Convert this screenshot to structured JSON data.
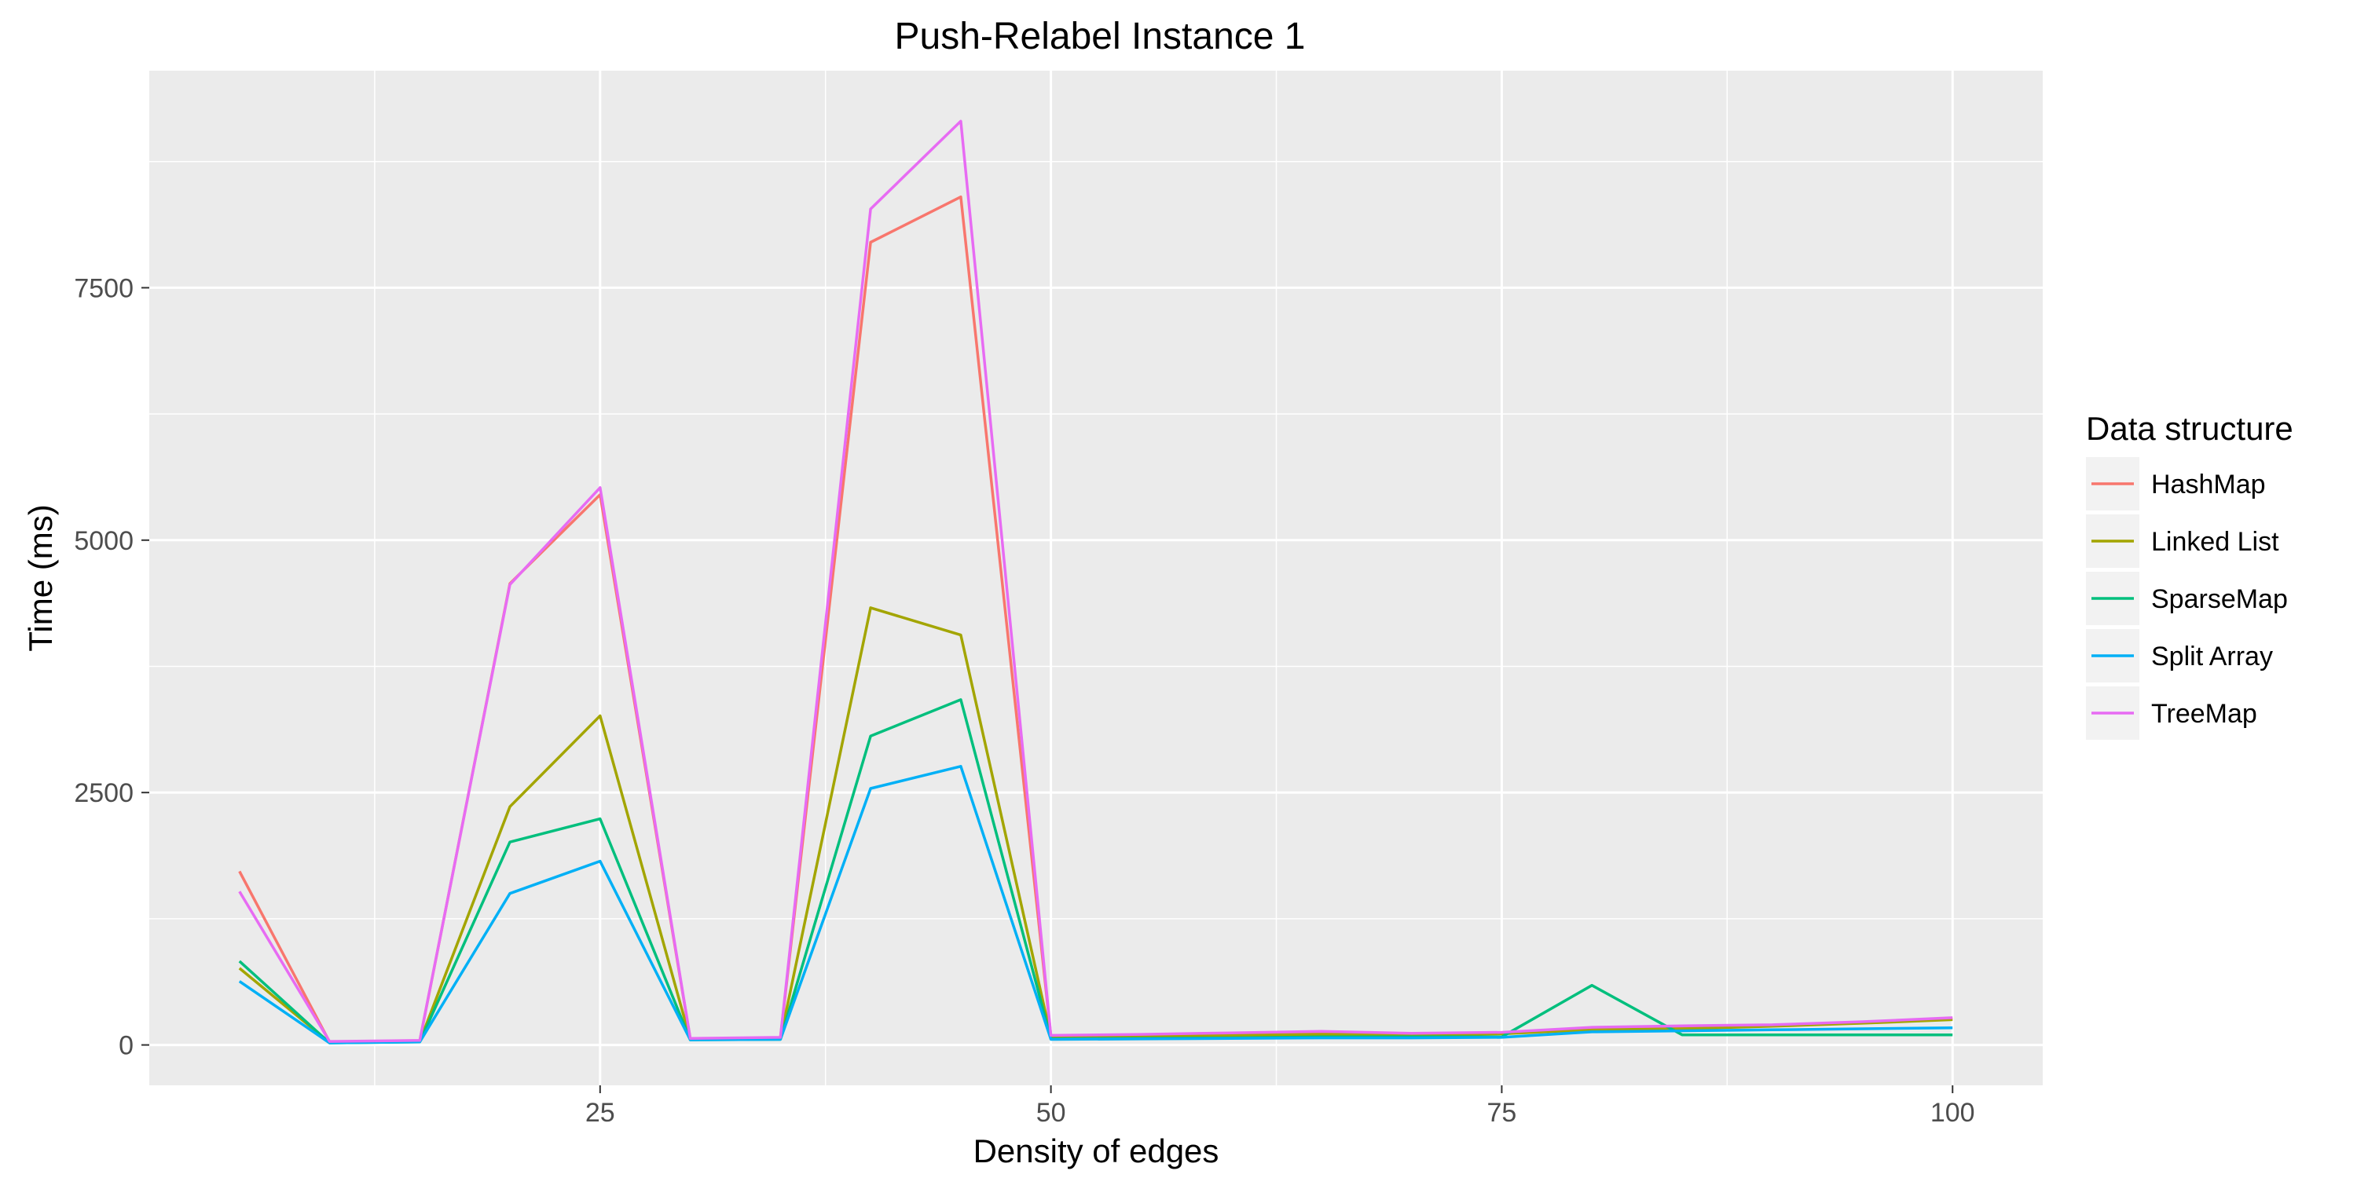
{
  "chart_data": {
    "type": "line",
    "title": "Push-Relabel Instance 1",
    "xlabel": "Density of edges",
    "ylabel": "Time (ms)",
    "xlim": [
      0,
      105
    ],
    "ylim": [
      -400,
      9650
    ],
    "x_ticks": [
      25,
      50,
      75,
      100
    ],
    "y_ticks": [
      0,
      2500,
      5000,
      7500
    ],
    "x_tick_labels": [
      "25",
      "50",
      "75",
      "100"
    ],
    "y_tick_labels": [
      "0",
      "2500",
      "5000",
      "7500"
    ],
    "grid": true,
    "legend_position": "right",
    "legend_title": "Data structure",
    "x": [
      5,
      10,
      15,
      20,
      25,
      30,
      35,
      40,
      45,
      50,
      55,
      60,
      65,
      70,
      75,
      80,
      85,
      90,
      95,
      100
    ],
    "series": [
      {
        "name": "HashMap",
        "color": "#F8766D",
        "values": [
          1720,
          30,
          40,
          4570,
          5450,
          60,
          70,
          7950,
          8400,
          90,
          100,
          110,
          130,
          110,
          120,
          170,
          180,
          190,
          220,
          260
        ]
      },
      {
        "name": "Linked List",
        "color": "#A3A500",
        "values": [
          760,
          25,
          35,
          2360,
          3260,
          55,
          60,
          4330,
          4060,
          80,
          85,
          95,
          105,
          100,
          110,
          150,
          160,
          185,
          215,
          250
        ]
      },
      {
        "name": "SparseMap",
        "color": "#00BF7D",
        "values": [
          830,
          20,
          30,
          2010,
          2240,
          50,
          55,
          3060,
          3420,
          60,
          65,
          70,
          80,
          80,
          80,
          590,
          100,
          100,
          100,
          100
        ]
      },
      {
        "name": "Split Array",
        "color": "#00B0F6",
        "values": [
          630,
          20,
          30,
          1500,
          1820,
          50,
          55,
          2540,
          2760,
          55,
          60,
          65,
          70,
          70,
          75,
          130,
          140,
          150,
          160,
          170
        ]
      },
      {
        "name": "TreeMap",
        "color": "#E76BF3",
        "values": [
          1520,
          35,
          45,
          4560,
          5520,
          65,
          75,
          8280,
          9150,
          95,
          105,
          120,
          135,
          115,
          125,
          175,
          190,
          200,
          230,
          270
        ]
      }
    ]
  }
}
